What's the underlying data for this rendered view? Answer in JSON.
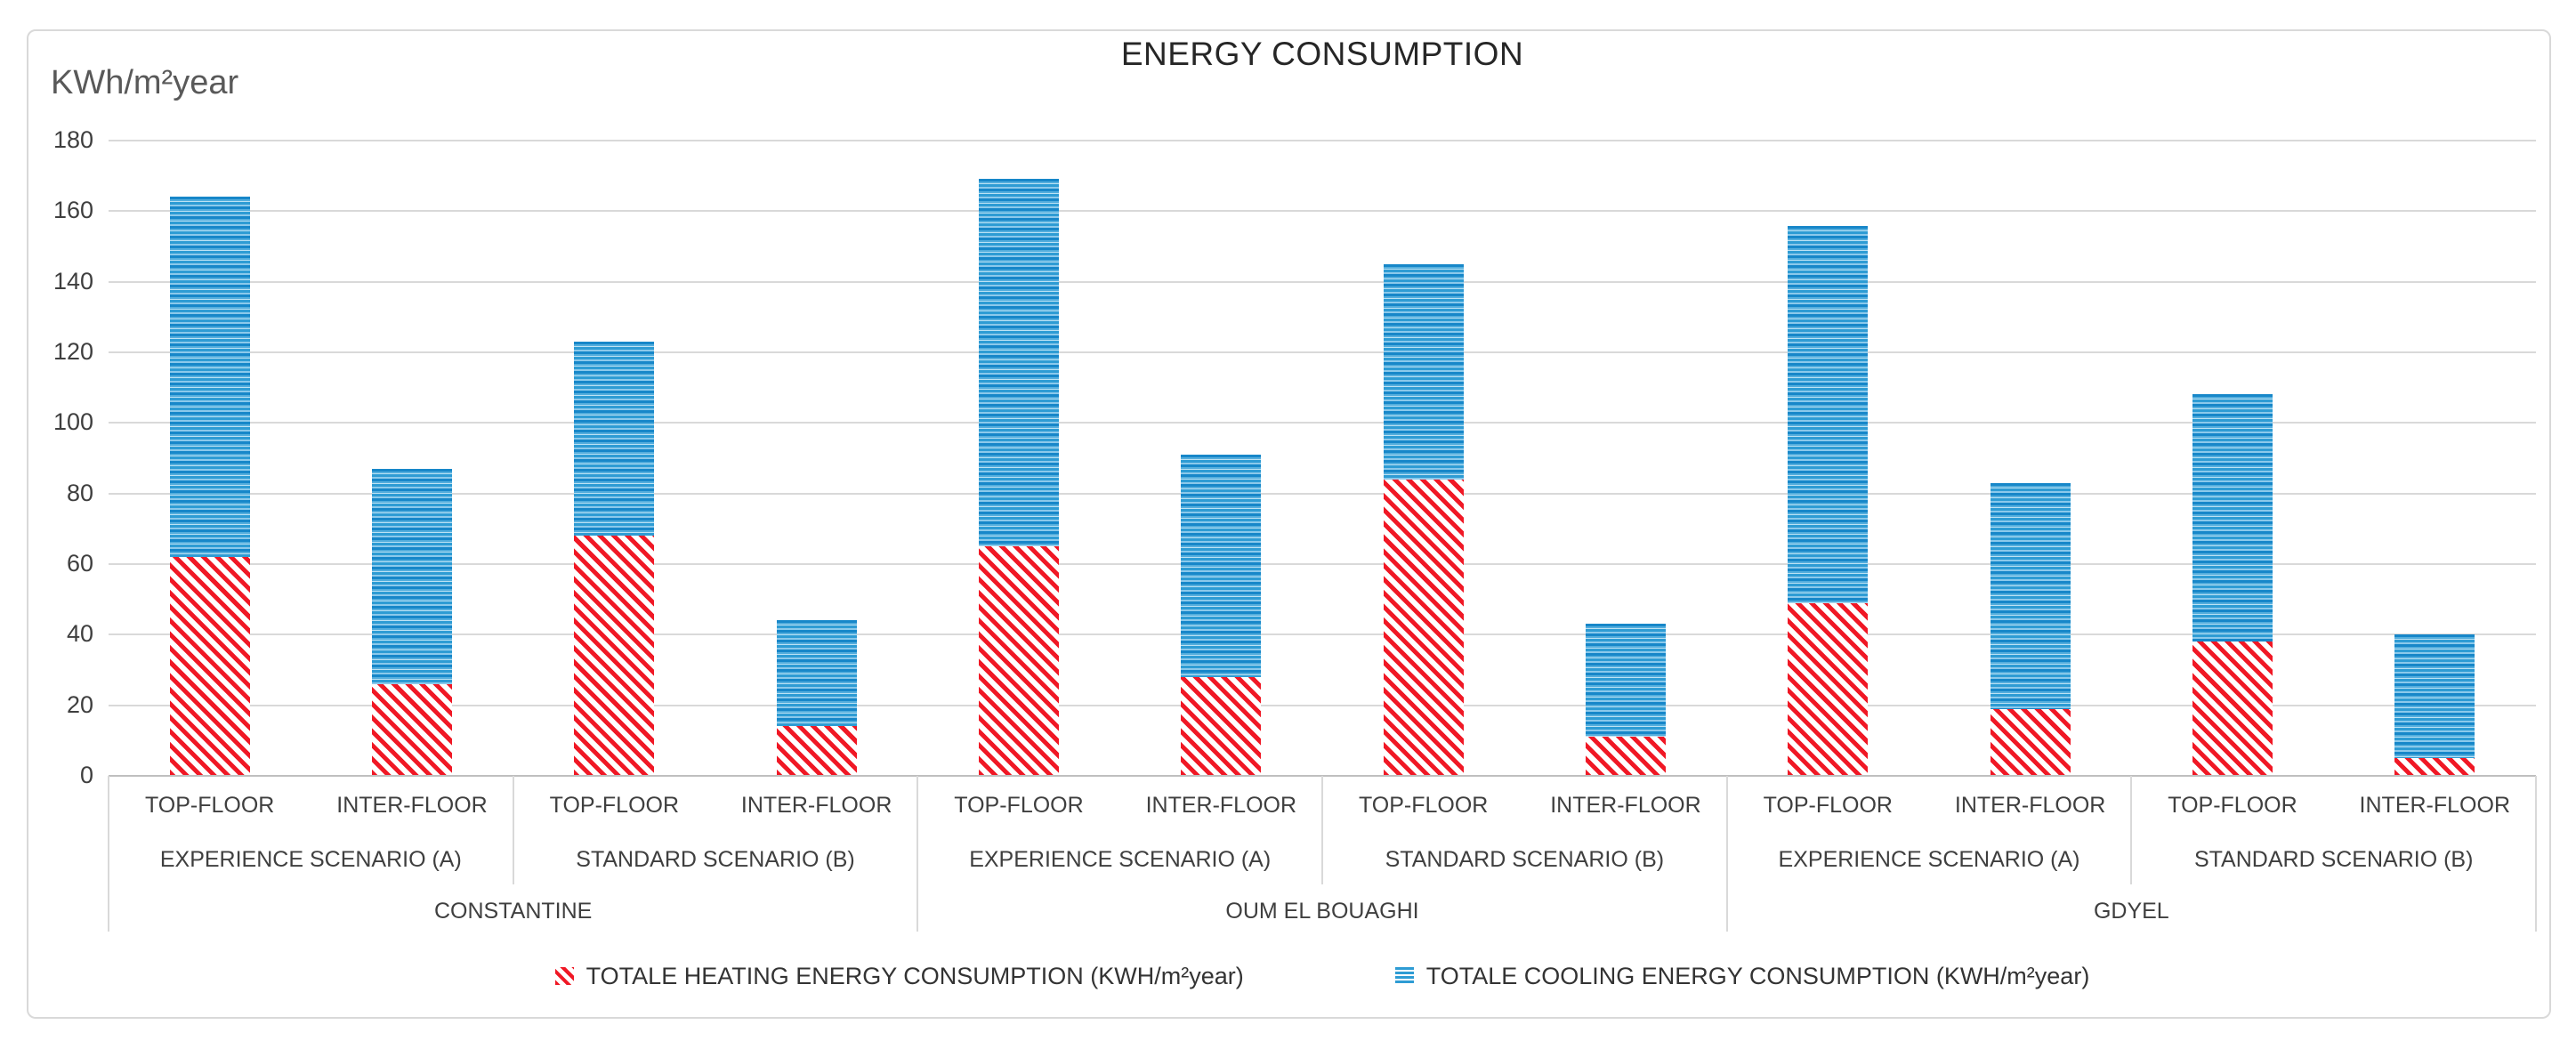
{
  "title": "ENERGY CONSUMPTION",
  "y_axis": {
    "unit_label": "KWh/m²year",
    "min": 0,
    "max": 180,
    "tick_step": 20
  },
  "legend": {
    "heating_label": "TOTALE  HEATING ENERGY CONSUMPTION  (KWH/m²year)",
    "cooling_label": "TOTALE  COOLING ENERGY CONSUMPTION  (KWH/m²year)"
  },
  "colors": {
    "heating_red": "#F01825",
    "cooling_blue": "#1787C9",
    "gridline": "#D9D9D9",
    "axis_text": "#3F3F3F"
  },
  "chart_data": {
    "type": "bar",
    "stacked": true,
    "title": "ENERGY CONSUMPTION",
    "ylabel": "KWh/m²year",
    "ylim": [
      0,
      180
    ],
    "ytick_step": 20,
    "grid": true,
    "legend_position": "bottom",
    "series_names": [
      "TOTALE  HEATING ENERGY CONSUMPTION  (KWH/m²year)",
      "TOTALE  COOLING ENERGY CONSUMPTION  (KWH/m²year)"
    ],
    "groups": [
      {
        "city": "CONSTANTINE",
        "scenarios": [
          {
            "label": "EXPERIENCE SCENARIO (A)",
            "bars": [
              {
                "label": "TOP-FLOOR",
                "heating": 62,
                "cooling": 102,
                "total": 164
              },
              {
                "label": "INTER-FLOOR",
                "heating": 26,
                "cooling": 61,
                "total": 87
              }
            ]
          },
          {
            "label": "STANDARD SCENARIO (B)",
            "bars": [
              {
                "label": "TOP-FLOOR",
                "heating": 68,
                "cooling": 55,
                "total": 123
              },
              {
                "label": "INTER-FLOOR",
                "heating": 14,
                "cooling": 30,
                "total": 44
              }
            ]
          }
        ]
      },
      {
        "city": "OUM EL BOUAGHI",
        "scenarios": [
          {
            "label": "EXPERIENCE SCENARIO (A)",
            "bars": [
              {
                "label": "TOP-FLOOR",
                "heating": 65,
                "cooling": 104,
                "total": 169
              },
              {
                "label": "INTER-FLOOR",
                "heating": 28,
                "cooling": 63,
                "total": 91
              }
            ]
          },
          {
            "label": "STANDARD SCENARIO (B)",
            "bars": [
              {
                "label": "TOP-FLOOR",
                "heating": 84,
                "cooling": 61,
                "total": 145
              },
              {
                "label": "INTER-FLOOR",
                "heating": 11,
                "cooling": 32,
                "total": 43
              }
            ]
          }
        ]
      },
      {
        "city": "GDYEL",
        "scenarios": [
          {
            "label": "EXPERIENCE SCENARIO (A)",
            "bars": [
              {
                "label": "TOP-FLOOR",
                "heating": 49,
                "cooling": 107,
                "total": 156
              },
              {
                "label": "INTER-FLOOR",
                "heating": 19,
                "cooling": 64,
                "total": 83
              }
            ]
          },
          {
            "label": "STANDARD SCENARIO (B)",
            "bars": [
              {
                "label": "TOP-FLOOR",
                "heating": 38,
                "cooling": 70,
                "total": 108
              },
              {
                "label": "INTER-FLOOR",
                "heating": 5,
                "cooling": 35,
                "total": 40
              }
            ]
          }
        ]
      }
    ]
  }
}
